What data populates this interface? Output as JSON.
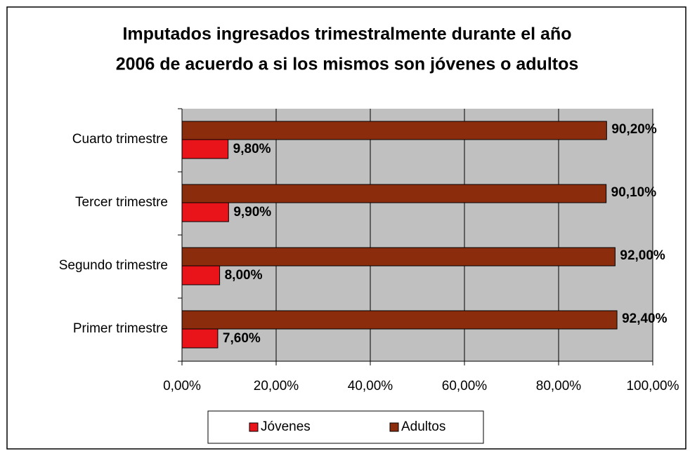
{
  "chart_data": {
    "type": "bar",
    "orientation": "horizontal",
    "title": [
      "Imputados ingresados trimestralmente durante el año",
      "2006 de acuerdo a si los mismos son jóvenes o adultos"
    ],
    "categories": [
      "Primer trimestre",
      "Segundo trimestre",
      "Tercer trimestre",
      "Cuarto trimestre"
    ],
    "series": [
      {
        "name": "Jóvenes",
        "color": "#e8141a",
        "values": [
          7.6,
          8.0,
          9.9,
          9.8
        ],
        "value_labels": [
          "7,60%",
          "8,00%",
          "9,90%",
          "9,80%"
        ]
      },
      {
        "name": "Adultos",
        "color": "#8b2d0c",
        "values": [
          92.4,
          92.0,
          90.1,
          90.2
        ],
        "value_labels": [
          "92,40%",
          "92,00%",
          "90,10%",
          "90,20%"
        ]
      }
    ],
    "xlim": [
      0,
      100
    ],
    "xticks": [
      {
        "value": 0,
        "label": "0,00%"
      },
      {
        "value": 20,
        "label": "20,00%"
      },
      {
        "value": 40,
        "label": "40,00%"
      },
      {
        "value": 60,
        "label": "60,00%"
      },
      {
        "value": 80,
        "label": "80,00%"
      },
      {
        "value": 100,
        "label": "100,00%"
      }
    ],
    "grid": true,
    "legend": "bottom"
  }
}
